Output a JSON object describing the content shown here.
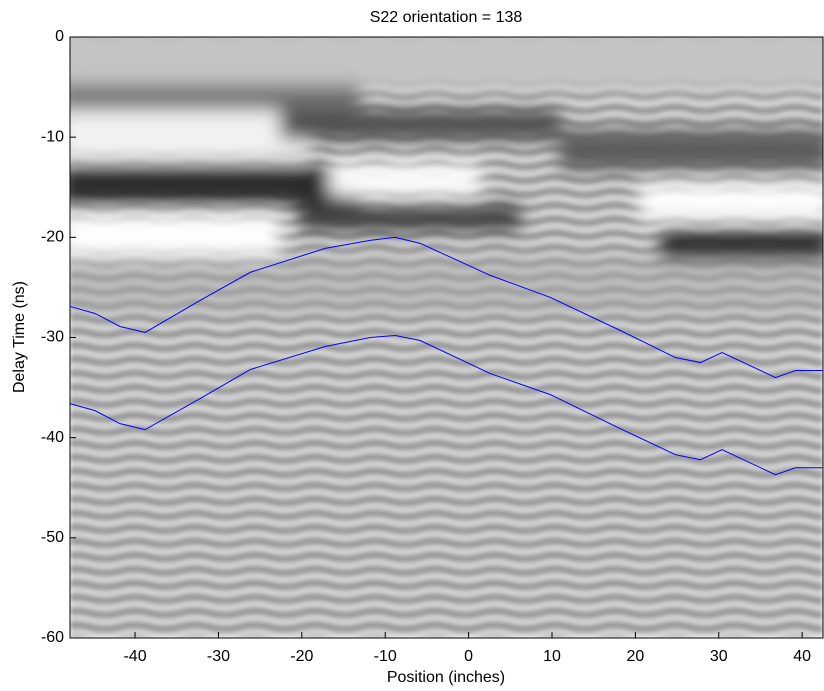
{
  "chart_data": {
    "type": "line",
    "title": "S22  orientation = 138",
    "x_label": "Position (inches)",
    "y_label": "Delay Time (ns)",
    "x": [
      -47.8,
      -44.8,
      -41.8,
      -38.8,
      -32.2,
      -26.2,
      -17.2,
      -11.8,
      -8.8,
      -5.8,
      2.6,
      9.8,
      18.2,
      24.8,
      27.8,
      30.4,
      36.8,
      39.2,
      42.5
    ],
    "series": [
      {
        "color": "#0000ff",
        "values": [
          -26.9,
          -27.6,
          -28.9,
          -29.5,
          -26.3,
          -23.5,
          -21.1,
          -20.3,
          -20.0,
          -20.6,
          -23.8,
          -26.0,
          -29.3,
          -32.0,
          -32.5,
          -31.5,
          -34.0,
          -33.3,
          -33.3
        ]
      },
      {
        "color": "#0000ff",
        "values": [
          -36.6,
          -37.3,
          -38.6,
          -39.2,
          -36.1,
          -33.2,
          -30.9,
          -30.0,
          -29.8,
          -30.3,
          -33.6,
          -35.7,
          -39.1,
          -41.7,
          -42.2,
          -41.2,
          -43.7,
          -43.0,
          -43.0
        ]
      }
    ],
    "xlim": [
      -47.8,
      42.5
    ],
    "ylim": [
      -60,
      0
    ],
    "xticks": [
      -40,
      -30,
      -20,
      -10,
      0,
      10,
      20,
      30,
      40
    ],
    "yticks": [
      0,
      -10,
      -20,
      -30,
      -40,
      -50,
      -60
    ]
  }
}
